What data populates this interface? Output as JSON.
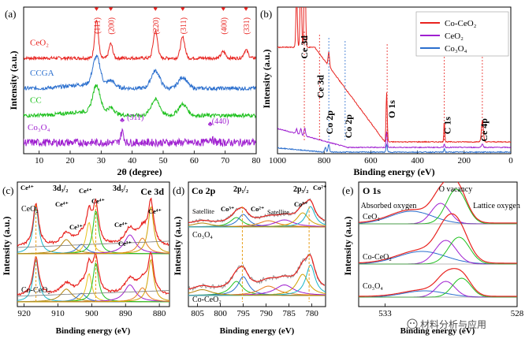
{
  "figure_title": "",
  "watermark": "材料分析与应用",
  "chart_data": [
    {
      "id": "a",
      "type": "line",
      "panel_label": "(a)",
      "title": "",
      "xlabel": "2θ (degree)",
      "ylabel": "Intensity (a.u.)",
      "xlim": [
        5,
        80
      ],
      "xticks": [
        10,
        20,
        30,
        40,
        50,
        60,
        70,
        80
      ],
      "series": [
        {
          "name": "CeO₂",
          "color": "#e8231f",
          "offset": 3.0,
          "noise": 0.05,
          "peaks": [
            [
              28.5,
              1.2,
              0.6
            ],
            [
              33.1,
              0.45,
              0.6
            ],
            [
              47.5,
              0.85,
              0.7
            ],
            [
              56.3,
              0.65,
              0.7
            ],
            [
              69.4,
              0.2,
              0.7
            ],
            [
              76.7,
              0.25,
              0.7
            ]
          ]
        },
        {
          "name": "CCGA",
          "color": "#2b6fce",
          "offset": 2.05,
          "noise": 0.06,
          "peaks": [
            [
              28.5,
              0.9,
              1.2
            ],
            [
              47.5,
              0.55,
              1.4
            ],
            [
              56.3,
              0.35,
              1.4
            ],
            [
              33.1,
              0.2,
              1.2
            ]
          ]
        },
        {
          "name": "CC",
          "color": "#1fc11f",
          "offset": 1.2,
          "noise": 0.06,
          "peaks": [
            [
              28.5,
              0.85,
              1.2
            ],
            [
              47.5,
              0.5,
              1.4
            ],
            [
              56.3,
              0.35,
              1.4
            ],
            [
              33.1,
              0.2,
              1.2
            ]
          ]
        },
        {
          "name": "Co₃O₄",
          "color": "#9f1fd0",
          "offset": 0.35,
          "noise": 0.12,
          "peaks": [
            [
              36.8,
              0.35,
              0.5
            ],
            [
              65.2,
              0.12,
              0.8
            ]
          ]
        }
      ],
      "annotations": [
        {
          "text": "(111)",
          "x": 28.5,
          "color": "#e8231f"
        },
        {
          "text": "(200)",
          "x": 33.1,
          "color": "#e8231f"
        },
        {
          "text": "(220)",
          "x": 47.5,
          "color": "#e8231f"
        },
        {
          "text": "(311)",
          "x": 56.3,
          "color": "#e8231f"
        },
        {
          "text": "(400)",
          "x": 69.4,
          "color": "#e8231f"
        },
        {
          "text": "(331)",
          "x": 76.7,
          "color": "#e8231f"
        },
        {
          "text": "(311)",
          "x": 36.8,
          "color": "#9f1fd0"
        },
        {
          "text": "(440)",
          "x": 65.2,
          "color": "#9f1fd0"
        }
      ]
    },
    {
      "id": "b",
      "type": "line",
      "panel_label": "(b)",
      "title": "",
      "xlabel": "Binding energy (eV)",
      "ylabel": "Intensity (a.u.)",
      "xlim": [
        1000,
        0
      ],
      "xticks": [
        1000,
        800,
        600,
        400,
        200,
        0
      ],
      "legend": [
        {
          "name": "Co-CeO₂",
          "color": "#e8231f"
        },
        {
          "name": "CeO₂",
          "color": "#9f1fd0"
        },
        {
          "name": "Co₃O₄",
          "color": "#2b6fce"
        }
      ],
      "annotations": [
        {
          "text": "Ce 3d",
          "x": 885
        },
        {
          "text": "Ce 3d",
          "x": 820
        },
        {
          "text": "Co 2p",
          "x": 780
        },
        {
          "text": "Co 2p",
          "x": 710
        },
        {
          "text": "O 1s",
          "x": 530
        },
        {
          "text": "C 1s",
          "x": 285
        },
        {
          "text": "Ce 4p",
          "x": 122
        }
      ]
    },
    {
      "id": "c",
      "type": "line",
      "panel_label": "(c)",
      "title": "Ce 3d",
      "xlabel": "Binding energy (eV)",
      "ylabel": "Intensity (a.u.)",
      "xlim": [
        922,
        877
      ],
      "xticks": [
        920,
        910,
        900,
        890,
        880
      ],
      "labels": [
        "3d₃/₂",
        "3d₅/₂",
        "Ce⁴⁺",
        "Ce⁴⁺",
        "Ce⁴⁺",
        "Ce⁴⁺",
        "Ce⁴⁺",
        "Ce⁴⁺",
        "Ce³⁺",
        "Ce³⁺"
      ],
      "sample_labels": [
        "CeO₂",
        "Co-CeO₂"
      ],
      "reference_lines": [
        916.5,
        898.8
      ]
    },
    {
      "id": "d",
      "type": "line",
      "panel_label": "(d)",
      "title": "Co 2p",
      "xlabel": "Binding energy (eV)",
      "ylabel": "Intensity (a.u.)",
      "xlim": [
        807,
        777
      ],
      "xticks": [
        805,
        800,
        795,
        790,
        785,
        780
      ],
      "labels": [
        "2p₁/₂",
        "2p₃/₂",
        "Co³⁺",
        "Co²⁺",
        "Co³⁺",
        "Co²⁺",
        "Satellite",
        "Satellite"
      ],
      "sample_labels": [
        "Co₃O₄",
        "Co-CeO₂"
      ],
      "reference_lines": [
        795.2,
        780.6
      ]
    },
    {
      "id": "e",
      "type": "line",
      "panel_label": "(e)",
      "title": "O 1s",
      "xlabel": "Binding energy (eV)",
      "ylabel": "Intensity (a.u.)",
      "xlim": [
        534,
        528
      ],
      "xticks": [
        533,
        528
      ],
      "labels": [
        "Absorbed oxygen",
        "O vacancy",
        "Lattice oxygen"
      ],
      "sample_labels": [
        "CeO₂",
        "Co-CeO₂",
        "Co₃O₄"
      ]
    }
  ]
}
